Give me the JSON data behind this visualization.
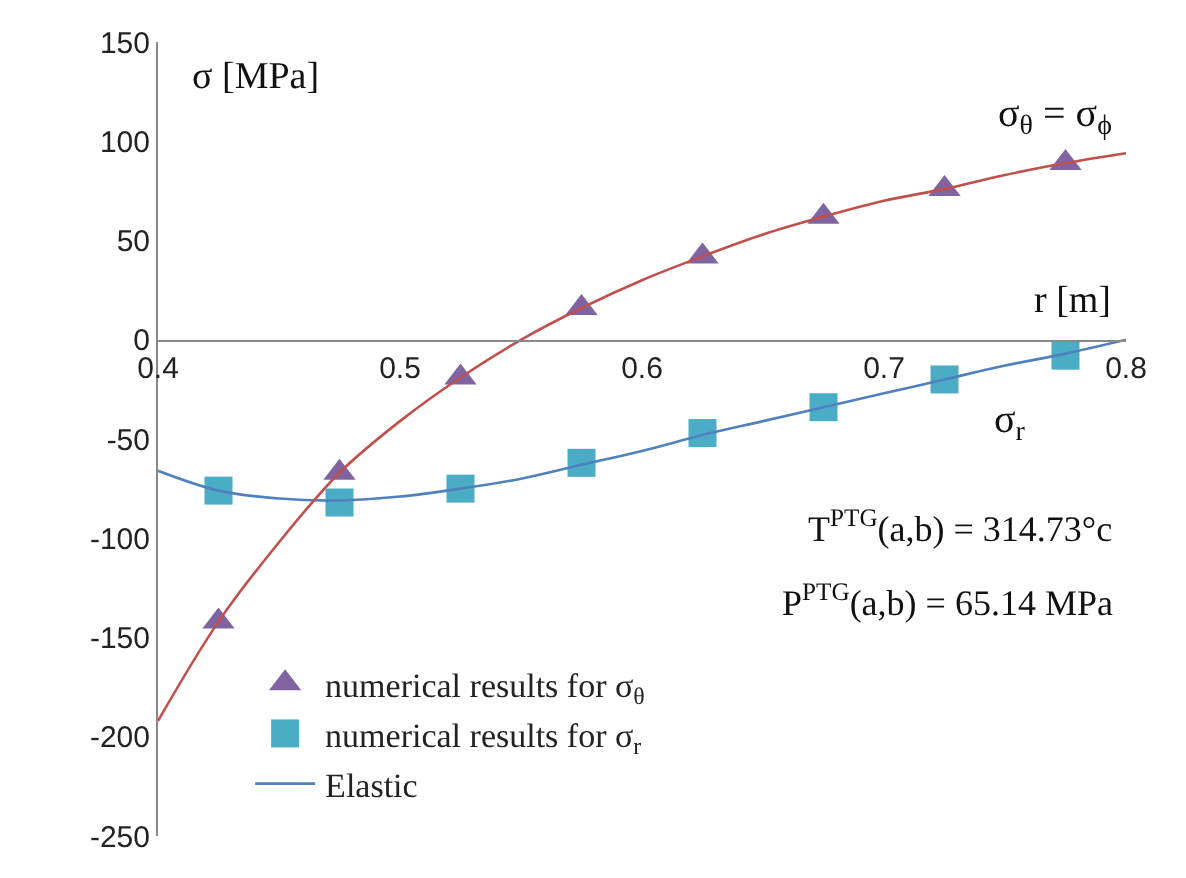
{
  "chart_data": {
    "type": "scatter",
    "xlabel": "r [m]",
    "ylabel": "σ [MPa]",
    "xlim": [
      0.4,
      0.8
    ],
    "xticks": [
      0.4,
      0.5,
      0.6,
      0.7,
      0.8
    ],
    "ylim": [
      -250,
      150
    ],
    "yticks": [
      -250,
      -200,
      -150,
      -100,
      -50,
      0,
      50,
      100,
      150
    ],
    "legend": "bottom",
    "series": [
      {
        "name": "numerical results for σ$_{θ}$",
        "marker": "triangle",
        "color": "#8064a2",
        "x": [
          0.425,
          0.475,
          0.525,
          0.575,
          0.625,
          0.675,
          0.725,
          0.775
        ],
        "values": [
          -142,
          -67,
          -19,
          16,
          42,
          62,
          76,
          89
        ]
      },
      {
        "name": "numerical results for σ$_{r}$",
        "marker": "square",
        "color": "#4bacc6",
        "x": [
          0.425,
          0.475,
          0.525,
          0.575,
          0.625,
          0.675,
          0.725,
          0.775
        ],
        "values": [
          -76,
          -82,
          -75,
          -62,
          -47,
          -34,
          -20,
          -8
        ]
      },
      {
        "name": "Elastic",
        "type": "line",
        "color": "#4f81bd",
        "x": [
          0.4,
          0.425,
          0.45,
          0.475,
          0.5,
          0.525,
          0.55,
          0.575,
          0.6,
          0.625,
          0.65,
          0.675,
          0.7,
          0.725,
          0.75,
          0.775,
          0.8
        ],
        "values": [
          -66,
          -76,
          -80,
          -81,
          -79,
          -75,
          -70,
          -63,
          -56,
          -48,
          -41,
          -34,
          -27,
          -20,
          -13,
          -7,
          0
        ]
      },
      {
        "type": "line",
        "color": "#c0504d",
        "x": [
          0.4,
          0.425,
          0.45,
          0.475,
          0.5,
          0.525,
          0.55,
          0.575,
          0.6,
          0.625,
          0.65,
          0.675,
          0.7,
          0.725,
          0.75,
          0.775,
          0.8
        ],
        "values": [
          -192,
          -142,
          -102,
          -67,
          -41,
          -19,
          0,
          16,
          30,
          42,
          53,
          62,
          70,
          76,
          83,
          89,
          94
        ]
      }
    ],
    "annotations": [
      "σ$_{θ}$ = σ$_{ϕ}$",
      "σ$_{r}$",
      "T$^{PTG}$(a,b) = 314.73°c",
      "P$^{PTG}$(a,b) = 65.14 MPa"
    ]
  }
}
